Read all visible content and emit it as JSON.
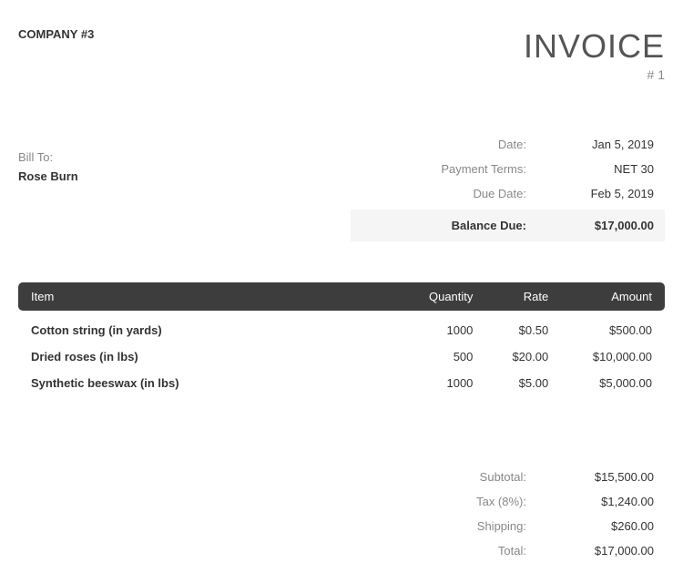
{
  "header": {
    "company_name": "COMPANY #3",
    "invoice_title": "INVOICE",
    "invoice_number": "# 1"
  },
  "bill_to": {
    "label": "Bill To:",
    "name": "Rose Burn"
  },
  "meta": {
    "date_label": "Date:",
    "date_value": "Jan 5, 2019",
    "terms_label": "Payment Terms:",
    "terms_value": "NET 30",
    "due_label": "Due Date:",
    "due_value": "Feb 5, 2019",
    "balance_label": "Balance Due:",
    "balance_value": "$17,000.00"
  },
  "table": {
    "headers": {
      "item": "Item",
      "quantity": "Quantity",
      "rate": "Rate",
      "amount": "Amount"
    },
    "rows": [
      {
        "item": "Cotton string (in yards)",
        "quantity": "1000",
        "rate": "$0.50",
        "amount": "$500.00"
      },
      {
        "item": "Dried roses (in lbs)",
        "quantity": "500",
        "rate": "$20.00",
        "amount": "$10,000.00"
      },
      {
        "item": "Synthetic beeswax (in lbs)",
        "quantity": "1000",
        "rate": "$5.00",
        "amount": "$5,000.00"
      }
    ]
  },
  "totals": {
    "subtotal_label": "Subtotal:",
    "subtotal_value": "$15,500.00",
    "tax_label": "Tax (8%):",
    "tax_value": "$1,240.00",
    "shipping_label": "Shipping:",
    "shipping_value": "$260.00",
    "total_label": "Total:",
    "total_value": "$17,000.00"
  }
}
